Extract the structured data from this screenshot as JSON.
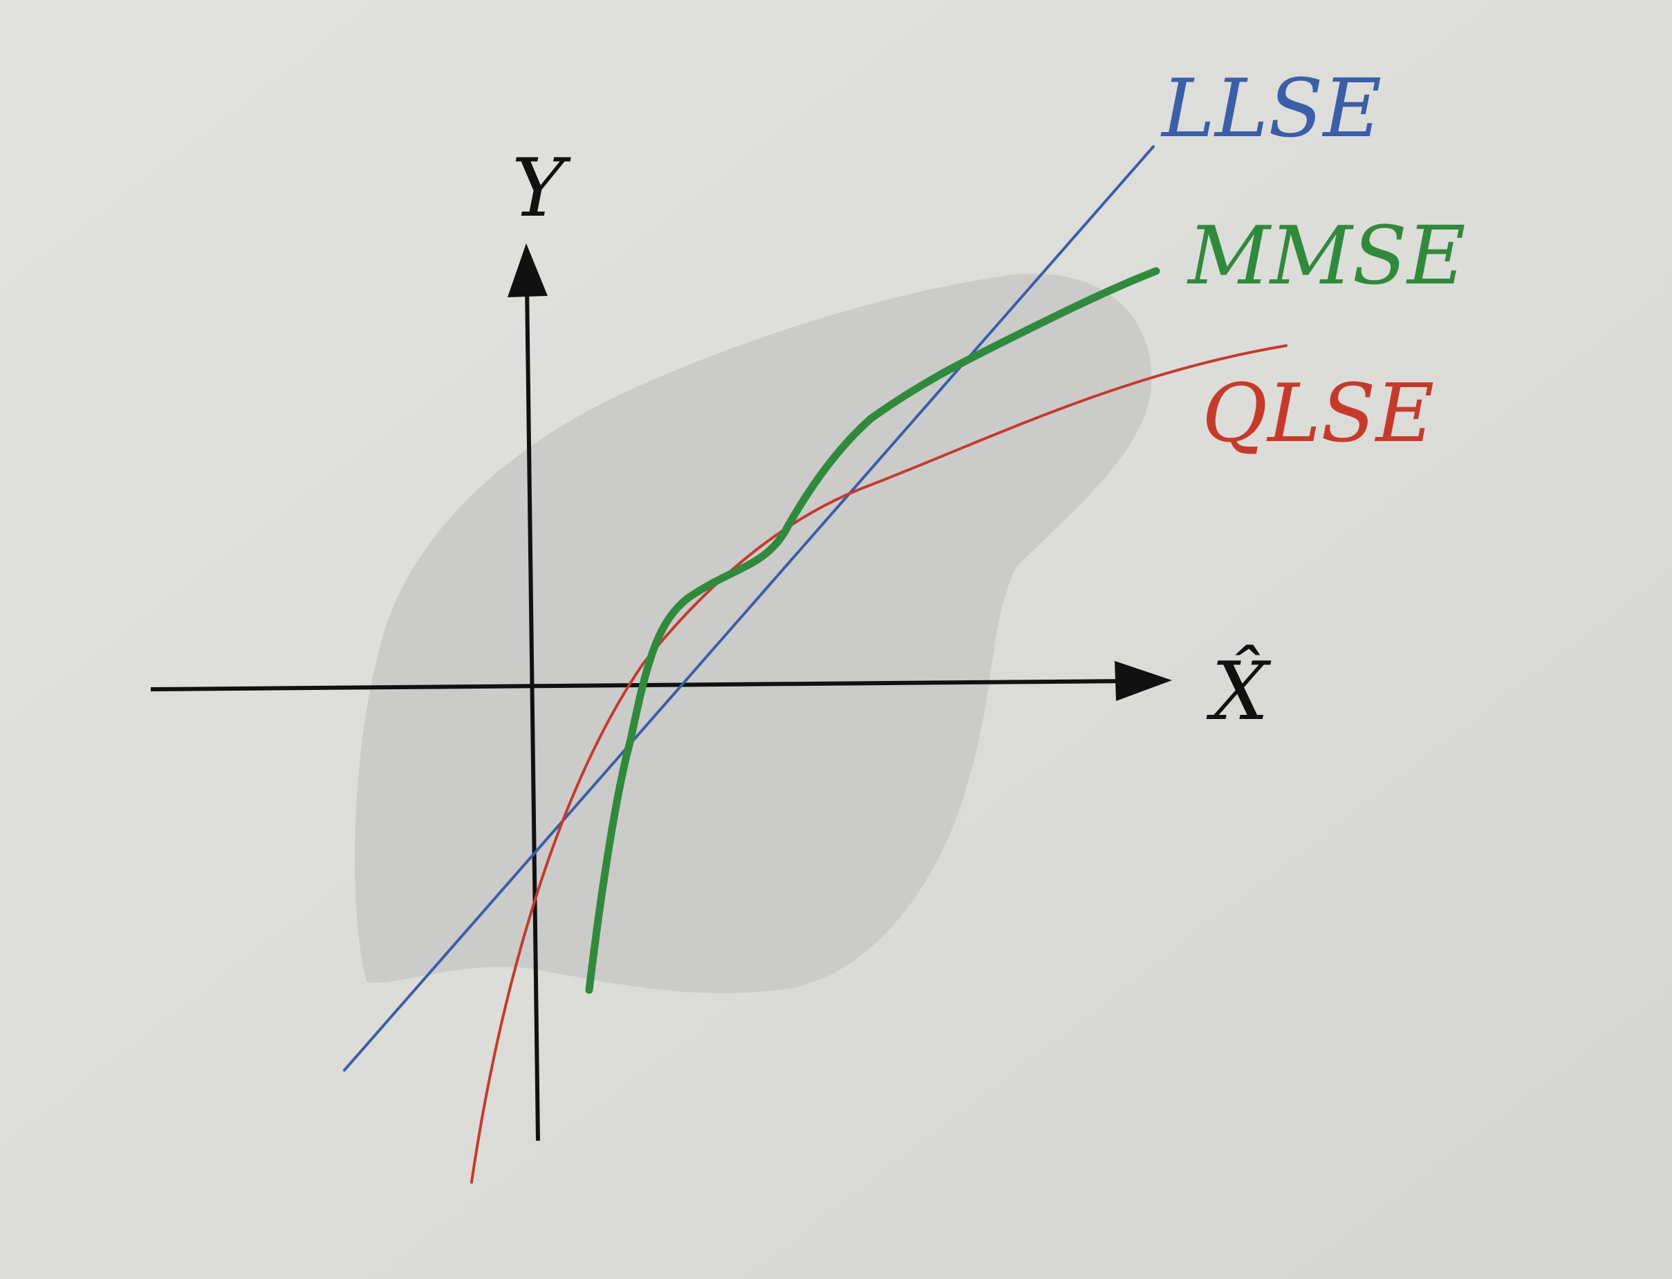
{
  "axes": {
    "x_label": "X̂",
    "y_label": "Y"
  },
  "curves": [
    {
      "id": "llse",
      "label": "LLSE",
      "color": "#3a5fa8"
    },
    {
      "id": "mmse",
      "label": "MMSE",
      "color": "#2f8a3c"
    },
    {
      "id": "qlse",
      "label": "QLSE",
      "color": "#c63a2c"
    }
  ],
  "region": {
    "color": "#cbcbc9"
  },
  "colors": {
    "page": "#dededb",
    "axis": "#111111"
  }
}
